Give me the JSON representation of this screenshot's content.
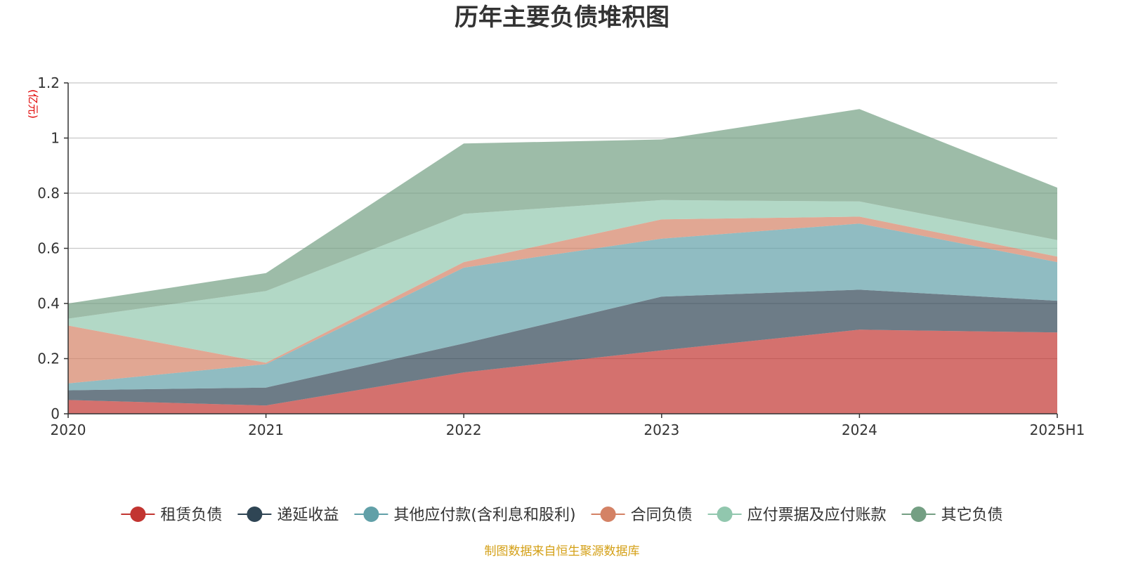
{
  "chart_data": {
    "type": "area",
    "stacked": true,
    "title": "历年主要负债堆积图",
    "unit_label": "(亿元)",
    "categories": [
      "2020",
      "2021",
      "2022",
      "2023",
      "2024",
      "2025H1"
    ],
    "ylim": [
      0,
      1.2
    ],
    "yticks": [
      0,
      0.2,
      0.4,
      0.6,
      0.8,
      1,
      1.2
    ],
    "ytick_labels": [
      "0",
      "0.2",
      "0.4",
      "0.6",
      "0.8",
      "1",
      "1.2"
    ],
    "grid": true,
    "legend_position": "bottom",
    "series": [
      {
        "name": "租赁负债",
        "color": "#c23531",
        "values": [
          0.05,
          0.03,
          0.15,
          0.23,
          0.305,
          0.295
        ]
      },
      {
        "name": "递延收益",
        "color": "#2f4554",
        "values": [
          0.035,
          0.065,
          0.105,
          0.195,
          0.145,
          0.115
        ]
      },
      {
        "name": "其他应付款(含利息和股利)",
        "color": "#61a0a8",
        "values": [
          0.025,
          0.085,
          0.275,
          0.21,
          0.24,
          0.14
        ]
      },
      {
        "name": "合同负债",
        "color": "#d48265",
        "values": [
          0.21,
          0.005,
          0.02,
          0.07,
          0.025,
          0.02
        ]
      },
      {
        "name": "应付票据及应付账款",
        "color": "#91c7ae",
        "values": [
          0.025,
          0.26,
          0.175,
          0.07,
          0.055,
          0.06
        ]
      },
      {
        "name": "其它负债",
        "color": "#749f83",
        "values": [
          0.055,
          0.065,
          0.255,
          0.22,
          0.335,
          0.19
        ]
      }
    ],
    "source_note": "制图数据来自恒生聚源数据库",
    "unit_color": "#e00000",
    "source_color": "#d4a017"
  }
}
